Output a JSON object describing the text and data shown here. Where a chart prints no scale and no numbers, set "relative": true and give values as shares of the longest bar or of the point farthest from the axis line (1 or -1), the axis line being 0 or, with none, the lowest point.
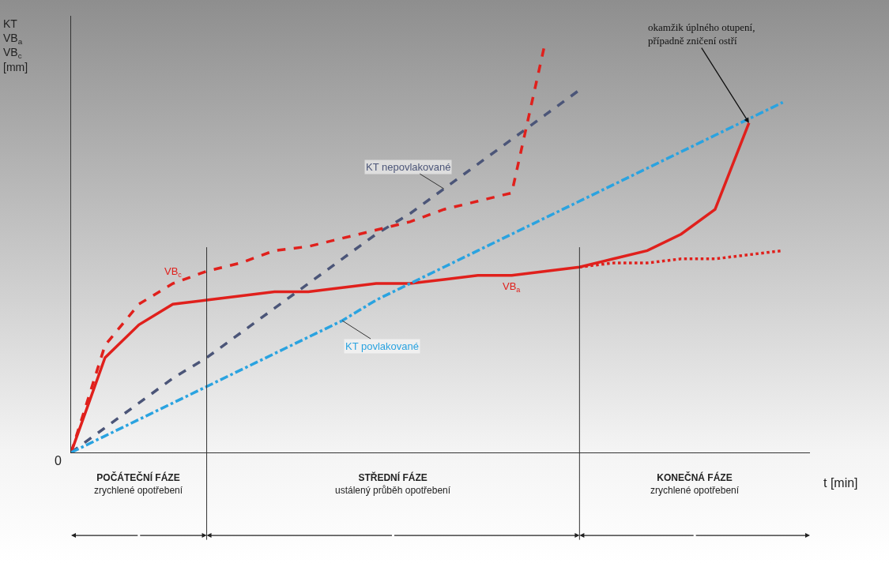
{
  "chart_data": {
    "type": "line",
    "relative": true,
    "xlabel": "t [min]",
    "ylabel": "KT\nVB$_{a}$\nVB$_{c}$\n[mm]",
    "categories": [
      null,
      null,
      null,
      null,
      null,
      null,
      null,
      null,
      null,
      null,
      null,
      null,
      null,
      null,
      null,
      null,
      null,
      null,
      null,
      null,
      null,
      null
    ],
    "series": [
      {
        "name": "KT nepovlakované",
        "color": "#4b5578",
        "line_style": "dashed",
        "values": [
          0,
          0.06,
          0.12,
          0.18,
          0.23,
          0.29,
          0.35,
          0.41,
          0.47,
          0.53,
          0.58,
          0.64,
          0.7,
          0.76,
          0.82,
          0.88,
          null,
          null,
          null,
          null,
          null,
          null
        ]
      },
      {
        "name": "VB$_{c}$",
        "color": "#e0201c",
        "line_style": "dashed",
        "values": [
          0,
          0.26,
          0.36,
          0.41,
          0.44,
          0.46,
          0.49,
          0.5,
          0.52,
          0.54,
          0.56,
          0.59,
          0.61,
          0.63,
          1,
          null,
          null,
          null,
          null,
          null,
          null,
          null
        ]
      },
      {
        "name": "VB$_{a}$",
        "color": "#e0201c",
        "line_style": "solid",
        "values": [
          0,
          0.23,
          0.31,
          0.36,
          0.37,
          0.38,
          0.39,
          0.39,
          0.4,
          0.41,
          0.41,
          0.42,
          0.43,
          0.43,
          0.44,
          0.45,
          0.47,
          0.49,
          0.53,
          0.59,
          0.8,
          null
        ]
      },
      {
        "name": "KT povlakované",
        "color": "#2aa3e0",
        "line_style": "dashdot",
        "values": [
          0,
          0.04,
          0.08,
          0.12,
          0.16,
          0.2,
          0.24,
          0.28,
          0.32,
          0.37,
          0.41,
          0.45,
          0.49,
          0.53,
          0.57,
          0.61,
          0.65,
          0.69,
          0.73,
          0.77,
          0.81,
          0.85
        ]
      },
      {
        "color": "#e0201c",
        "line_style": "dotted",
        "values": [
          null,
          null,
          null,
          null,
          null,
          null,
          null,
          null,
          null,
          null,
          null,
          null,
          null,
          null,
          null,
          0.45,
          0.46,
          0.46,
          0.47,
          0.47,
          0.48,
          0.49
        ]
      }
    ],
    "annotations": [
      "0",
      "POČÁTEČNÍ FÁZE\nzrychlené opotřebení",
      "STŘEDNÍ FÁZE\nustálený průběh opotřebení",
      "KONEČNÁ FÁZE\nzrychlené opotřebení",
      "okamžik úplného otupení,\npřípadně zničení ostří"
    ],
    "grid": false,
    "legend": false,
    "marker": "none"
  }
}
